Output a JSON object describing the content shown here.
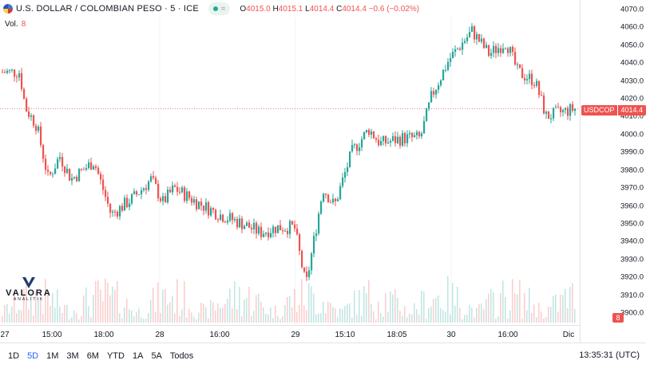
{
  "header": {
    "title": "U.S. DOLLAR / COLOMBIAN PESO · 5 · ICE",
    "ohlc": {
      "open_label": "O",
      "open": "4015.0",
      "high_label": "H",
      "high": "4015.1",
      "low_label": "L",
      "low": "4014.4",
      "close_label": "C",
      "close": "4014.4",
      "change": "−0.6 (−0.02%)"
    }
  },
  "volume": {
    "label": "Vol.",
    "value": "8"
  },
  "price_scale": {
    "ticks": [
      "4070.0",
      "4060.0",
      "4050.0",
      "4040.0",
      "4030.0",
      "4020.0",
      "4010.0",
      "4000.0",
      "3990.0",
      "3980.0",
      "3970.0",
      "3960.0",
      "3950.0",
      "3940.0",
      "3930.0",
      "3920.0",
      "3910.0",
      "3900.0"
    ],
    "last_symbol": "USDCOP",
    "last_price": "4014.4",
    "volume_badge": "8"
  },
  "time_axis": {
    "labels": [
      "27",
      "15:00",
      "18:00",
      "28",
      "16:00",
      "29",
      "15:10",
      "18:05",
      "30",
      "16:00",
      "Dic"
    ]
  },
  "bottom_bar": {
    "ranges": [
      "1D",
      "5D",
      "1M",
      "3M",
      "6M",
      "YTD",
      "1A",
      "5A",
      "Todos"
    ],
    "active_range": "5D",
    "clock": "13:35:31 (UTC)"
  },
  "logo": {
    "name": "VALORA",
    "sub": "ANALITIK"
  },
  "colors": {
    "up": "#26a69a",
    "down": "#ef5350",
    "accent": "#2962ff"
  },
  "chart_data": {
    "type": "candlestick",
    "title": "U.S. DOLLAR / COLOMBIAN PESO · 5 · ICE",
    "ylim": [
      3900,
      4070
    ],
    "x_labels": [
      "27",
      "15:00",
      "18:00",
      "28",
      "16:00",
      "29",
      "15:10",
      "18:05",
      "30",
      "16:00",
      "Dic"
    ],
    "price_path": [
      [
        0,
        4035
      ],
      [
        3,
        4035
      ],
      [
        4,
        4015
      ],
      [
        6,
        4005
      ],
      [
        8,
        3975
      ],
      [
        10,
        3988
      ],
      [
        12,
        3975
      ],
      [
        16,
        3985
      ],
      [
        19,
        3955
      ],
      [
        23,
        3965
      ],
      [
        26,
        3975
      ],
      [
        28,
        3962
      ],
      [
        30,
        3970
      ],
      [
        34,
        3962
      ],
      [
        38,
        3955
      ],
      [
        42,
        3950
      ],
      [
        45,
        3945
      ],
      [
        48,
        3948
      ],
      [
        51,
        3948
      ],
      [
        53,
        3915
      ],
      [
        56,
        3970
      ],
      [
        58,
        3960
      ],
      [
        61,
        3990
      ],
      [
        64,
        4003
      ],
      [
        66,
        3995
      ],
      [
        70,
        3998
      ],
      [
        73,
        3998
      ],
      [
        75,
        4022
      ],
      [
        78,
        4042
      ],
      [
        82,
        4058
      ],
      [
        85,
        4045
      ],
      [
        88,
        4052
      ],
      [
        90,
        4035
      ],
      [
        93,
        4030
      ],
      [
        95,
        4010
      ],
      [
        97,
        4012
      ],
      [
        100,
        4014.4
      ]
    ],
    "volume_heights": [
      2,
      3,
      4,
      5,
      6,
      7,
      8,
      6,
      5,
      4,
      3,
      2
    ],
    "last_price": 4014.4
  }
}
